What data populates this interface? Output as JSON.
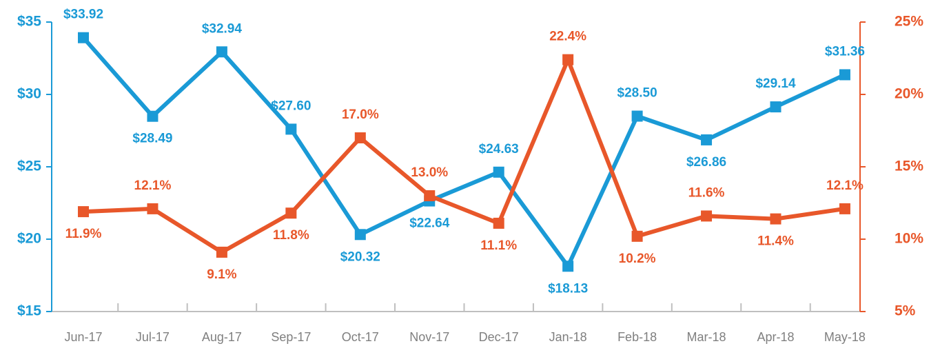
{
  "chart_data": {
    "type": "line",
    "categories": [
      "Jun-17",
      "Jul-17",
      "Aug-17",
      "Sep-17",
      "Oct-17",
      "Nov-17",
      "Dec-17",
      "Jan-18",
      "Feb-18",
      "Mar-18",
      "Apr-18",
      "May-18"
    ],
    "series": [
      {
        "color": "#1a9ad6",
        "values": [
          33.92,
          28.49,
          32.94,
          27.6,
          20.32,
          22.64,
          24.63,
          18.13,
          28.5,
          26.86,
          29.14,
          31.36
        ],
        "value_labels": [
          "$33.92",
          "$28.49",
          "$32.94",
          "$27.60",
          "$20.32",
          "$22.64",
          "$24.63",
          "$18.13",
          "$28.50",
          "$26.86",
          "$29.14",
          "$31.36"
        ]
      },
      {
        "color": "#e8572a",
        "axis": "y2",
        "values": [
          11.9,
          12.1,
          9.1,
          11.8,
          17.0,
          13.0,
          11.1,
          22.4,
          10.2,
          11.6,
          11.4,
          12.1
        ],
        "value_labels": [
          "11.9%",
          "12.1%",
          "9.1%",
          "11.8%",
          "17.0%",
          "13.0%",
          "11.1%",
          "22.4%",
          "10.2%",
          "11.6%",
          "11.4%",
          "12.1%"
        ]
      }
    ],
    "ylim": [
      15,
      35
    ],
    "yticks": [
      {
        "value": 15,
        "label": "$15"
      },
      {
        "value": 20,
        "label": "$20"
      },
      {
        "value": 25,
        "label": "$25"
      },
      {
        "value": 30,
        "label": "$30"
      },
      {
        "value": 35,
        "label": "$35"
      }
    ],
    "y2lim": [
      5,
      25
    ],
    "y2ticks": [
      {
        "value": 5,
        "label": "5%"
      },
      {
        "value": 10,
        "label": "10%"
      },
      {
        "value": 15,
        "label": "15%"
      },
      {
        "value": 20,
        "label": "20%"
      },
      {
        "value": 25,
        "label": "25%"
      }
    ]
  }
}
